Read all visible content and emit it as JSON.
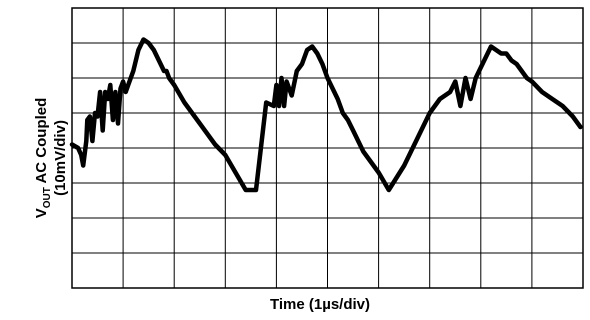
{
  "chart_data": {
    "type": "line",
    "xlabel": "Time (1µs/div)",
    "ylabel": {
      "v": "V",
      "sub": "OUT",
      "rest": " AC Coupled",
      "line2": "(10mV/div)"
    },
    "grid": true,
    "x_divisions": 10,
    "y_divisions": 8,
    "xlim": [
      0,
      10
    ],
    "ylim": [
      -40,
      40
    ],
    "line_color": "#000000",
    "series": [
      {
        "x": [
          0.0,
          0.12,
          0.18,
          0.22,
          0.28,
          0.3,
          0.35,
          0.4,
          0.45,
          0.5,
          0.55,
          0.6,
          0.65,
          0.7,
          0.75,
          0.8,
          0.85,
          0.9,
          0.95,
          1.0,
          1.05,
          1.1,
          1.2,
          1.3,
          1.4,
          1.5,
          1.6,
          1.7,
          1.8,
          1.85,
          1.9,
          2.0,
          2.2,
          2.5,
          2.8,
          3.0,
          3.2,
          3.4,
          3.6,
          3.8,
          3.95,
          4.0,
          4.05,
          4.1,
          4.15,
          4.2,
          4.3,
          4.4,
          4.5,
          4.6,
          4.7,
          4.8,
          4.9,
          5.0,
          5.1,
          5.2,
          5.3,
          5.4,
          5.5,
          5.6,
          5.7,
          5.8,
          5.9,
          6.0,
          6.2,
          6.5,
          6.8,
          7.0,
          7.2,
          7.4,
          7.5,
          7.6,
          7.7,
          7.8,
          7.9,
          8.0,
          8.1,
          8.2,
          8.3,
          8.4,
          8.5,
          8.6,
          8.7,
          8.8,
          8.9,
          9.0,
          9.2,
          9.4,
          9.6,
          9.8,
          9.95
        ],
        "y": [
          1,
          0,
          -2,
          -5,
          2,
          8,
          9,
          2,
          10,
          9,
          16,
          5,
          16,
          14,
          18,
          8,
          16,
          7,
          17,
          19,
          16,
          18,
          22,
          28,
          31,
          30,
          28,
          25,
          22,
          22,
          20,
          18,
          13,
          7,
          1,
          -2,
          -7,
          -12,
          -12,
          13,
          12,
          18,
          12,
          20,
          12,
          19,
          15,
          22,
          24,
          28,
          29,
          27,
          24,
          20,
          17,
          14,
          10,
          8,
          5,
          2,
          -1,
          -3,
          -5,
          -7,
          -12,
          -5,
          4,
          10,
          14,
          16,
          19,
          12,
          20,
          14,
          20,
          23,
          26,
          29,
          28,
          27,
          27,
          25,
          24,
          22,
          20,
          19,
          16,
          14,
          12,
          9,
          6
        ]
      }
    ]
  }
}
